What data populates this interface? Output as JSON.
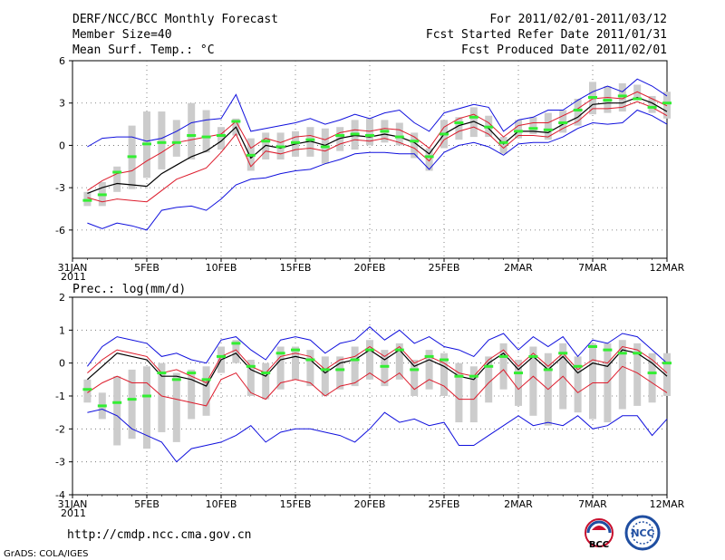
{
  "header": {
    "title": "DERF/NCC/BCC Monthly Forecast",
    "member_size": "Member Size=40",
    "variable": "Mean Surf. Temp.: °C",
    "period": "For 2011/02/01-2011/03/12",
    "started": "Fcst Started Refer Date 2011/01/31",
    "produced": "Fcst Produced Date 2011/02/01"
  },
  "footer": {
    "url": "http://cmdp.ncc.cma.gov.cn",
    "credit": "GrADS: COLA/IGES",
    "logo_bcc": "BCC",
    "logo_ncc": "NCC"
  },
  "colors": {
    "envelope": "#1010dd",
    "spread": "#dd1c2c",
    "mean": "#000000",
    "median": "#33ee33",
    "box": "#cccccc",
    "grid": "#666666"
  },
  "chart_data": [
    {
      "type": "line",
      "title": "Mean Surf. Temp.: °C",
      "ylim": [
        -8,
        6
      ],
      "yticks": [
        -6,
        -3,
        0,
        3,
        6
      ],
      "xticks": [
        {
          "day": 0,
          "label": "31JAN",
          "sub": "2011"
        },
        {
          "day": 5,
          "label": "5FEB"
        },
        {
          "day": 10,
          "label": "10FEB"
        },
        {
          "day": 15,
          "label": "15FEB"
        },
        {
          "day": 20,
          "label": "20FEB"
        },
        {
          "day": 25,
          "label": "25FEB"
        },
        {
          "day": 30,
          "label": "2MAR"
        },
        {
          "day": 35,
          "label": "7MAR"
        },
        {
          "day": 40,
          "label": "12MAR"
        }
      ],
      "days": [
        1,
        2,
        3,
        4,
        5,
        6,
        7,
        8,
        9,
        10,
        11,
        12,
        13,
        14,
        15,
        16,
        17,
        18,
        19,
        20,
        21,
        22,
        23,
        24,
        25,
        26,
        27,
        28,
        29,
        30,
        31,
        32,
        33,
        34,
        35,
        36,
        37,
        38,
        39,
        40
      ],
      "series": [
        {
          "name": "max",
          "values": [
            -0.1,
            0.5,
            0.6,
            0.6,
            0.3,
            0.5,
            1.0,
            1.6,
            1.8,
            1.9,
            3.6,
            1.0,
            1.2,
            1.4,
            1.6,
            1.9,
            1.5,
            1.8,
            2.2,
            1.9,
            2.3,
            2.5,
            1.6,
            1.0,
            2.3,
            2.6,
            2.9,
            2.7,
            1.0,
            1.8,
            2.0,
            2.5,
            2.5,
            3.2,
            3.8,
            4.2,
            3.8,
            4.7,
            4.2,
            3.5
          ]
        },
        {
          "name": "upper",
          "values": [
            -3.2,
            -2.5,
            -2.0,
            -1.8,
            -1.1,
            -0.5,
            0.2,
            0.4,
            0.6,
            0.8,
            1.7,
            -0.2,
            0.5,
            0.2,
            0.6,
            0.7,
            0.4,
            0.9,
            1.1,
            1.0,
            1.2,
            1.1,
            0.6,
            -0.2,
            1.3,
            1.9,
            2.2,
            1.6,
            0.6,
            1.4,
            1.6,
            1.6,
            2.1,
            2.6,
            3.3,
            3.4,
            3.3,
            3.8,
            3.3,
            2.8
          ]
        },
        {
          "name": "mean",
          "values": [
            -3.4,
            -3.0,
            -2.7,
            -2.8,
            -2.9,
            -2.0,
            -1.4,
            -0.8,
            -0.4,
            0.3,
            1.3,
            -0.9,
            0.0,
            -0.2,
            0.1,
            0.3,
            0.0,
            0.5,
            0.7,
            0.6,
            0.8,
            0.6,
            0.2,
            -0.6,
            0.8,
            1.4,
            1.7,
            1.2,
            0.1,
            1.0,
            1.0,
            0.9,
            1.5,
            2.0,
            2.9,
            3.0,
            3.0,
            3.4,
            3.0,
            2.4
          ]
        },
        {
          "name": "lower",
          "values": [
            -3.7,
            -4.0,
            -3.8,
            -3.9,
            -4.0,
            -3.2,
            -2.4,
            -2.0,
            -1.6,
            -0.5,
            0.8,
            -1.5,
            -0.4,
            -0.6,
            -0.3,
            -0.2,
            -0.4,
            0.1,
            0.4,
            0.3,
            0.5,
            0.2,
            -0.2,
            -1.1,
            0.4,
            1.0,
            1.3,
            0.8,
            -0.2,
            0.7,
            0.7,
            0.6,
            1.2,
            1.7,
            2.6,
            2.6,
            2.7,
            3.1,
            2.7,
            2.1
          ]
        },
        {
          "name": "min",
          "values": [
            -5.5,
            -5.9,
            -5.5,
            -5.7,
            -6.0,
            -4.6,
            -4.4,
            -4.3,
            -4.6,
            -3.8,
            -2.8,
            -2.4,
            -2.3,
            -2.0,
            -1.8,
            -1.7,
            -1.3,
            -1.0,
            -0.6,
            -0.5,
            -0.5,
            -0.6,
            -0.6,
            -1.7,
            -0.5,
            0.0,
            0.2,
            -0.1,
            -0.7,
            0.1,
            0.2,
            0.2,
            0.6,
            1.2,
            1.6,
            1.5,
            1.6,
            2.5,
            2.1,
            1.5
          ]
        },
        {
          "name": "median",
          "values": [
            -3.9,
            -3.5,
            -1.9,
            -0.8,
            0.1,
            0.2,
            0.2,
            0.7,
            0.6,
            0.7,
            1.7,
            -0.7,
            0.3,
            -0.1,
            0.2,
            0.4,
            -0.1,
            0.7,
            0.8,
            0.7,
            1.0,
            0.6,
            0.3,
            -0.8,
            0.8,
            1.6,
            2.0,
            1.3,
            0.2,
            1.0,
            1.2,
            1.1,
            1.6,
            2.5,
            3.4,
            3.2,
            3.5,
            3.3,
            2.7,
            3.0
          ]
        },
        {
          "name": "box_top",
          "values": [
            -3.3,
            -2.6,
            -1.5,
            1.4,
            2.4,
            2.4,
            1.8,
            3.0,
            2.5,
            1.3,
            1.9,
            0.5,
            0.9,
            0.9,
            1.0,
            1.3,
            1.2,
            1.3,
            1.8,
            1.9,
            1.8,
            1.6,
            0.9,
            -0.2,
            1.8,
            2.0,
            2.7,
            2.1,
            0.6,
            1.8,
            2.0,
            2.3,
            2.5,
            3.3,
            4.5,
            4.2,
            4.4,
            4.3,
            3.5,
            3.8
          ]
        },
        {
          "name": "box_bottom",
          "values": [
            -4.3,
            -4.3,
            -3.3,
            -3.1,
            -2.3,
            -1.7,
            -0.8,
            -1.0,
            -0.5,
            -0.3,
            0.7,
            -1.8,
            -1.0,
            -1.0,
            -0.8,
            -0.8,
            -1.3,
            -0.4,
            -0.3,
            0.0,
            0.2,
            0.0,
            -0.9,
            -1.8,
            -0.2,
            0.4,
            0.6,
            0.6,
            -0.6,
            0.5,
            0.8,
            0.4,
            0.9,
            1.4,
            2.2,
            2.3,
            2.4,
            3.2,
            2.3,
            1.9
          ]
        }
      ]
    },
    {
      "type": "line",
      "title": "Prec.: log(mm/d)",
      "ylim": [
        -4,
        2
      ],
      "yticks": [
        -4,
        -3,
        -2,
        -1,
        0,
        1,
        2
      ],
      "xticks": [
        {
          "day": 0,
          "label": "31JAN",
          "sub": "2011"
        },
        {
          "day": 5,
          "label": "5FEB"
        },
        {
          "day": 10,
          "label": "10FEB"
        },
        {
          "day": 15,
          "label": "15FEB"
        },
        {
          "day": 20,
          "label": "20FEB"
        },
        {
          "day": 25,
          "label": "25FEB"
        },
        {
          "day": 30,
          "label": "2MAR"
        },
        {
          "day": 35,
          "label": "7MAR"
        },
        {
          "day": 40,
          "label": "12MAR"
        }
      ],
      "days": [
        1,
        2,
        3,
        4,
        5,
        6,
        7,
        8,
        9,
        10,
        11,
        12,
        13,
        14,
        15,
        16,
        17,
        18,
        19,
        20,
        21,
        22,
        23,
        24,
        25,
        26,
        27,
        28,
        29,
        30,
        31,
        32,
        33,
        34,
        35,
        36,
        37,
        38,
        39,
        40
      ],
      "series": [
        {
          "name": "max",
          "values": [
            -0.1,
            0.5,
            0.8,
            0.7,
            0.6,
            0.2,
            0.3,
            0.1,
            0.0,
            0.7,
            0.8,
            0.4,
            0.1,
            0.7,
            0.8,
            0.7,
            0.3,
            0.6,
            0.7,
            1.1,
            0.7,
            1.0,
            0.6,
            0.8,
            0.5,
            0.4,
            0.2,
            0.7,
            0.9,
            0.4,
            0.8,
            0.5,
            0.8,
            0.2,
            0.7,
            0.6,
            0.9,
            0.8,
            0.4,
            0.0
          ]
        },
        {
          "name": "upper",
          "values": [
            -0.3,
            0.1,
            0.4,
            0.3,
            0.2,
            -0.3,
            -0.2,
            -0.4,
            -0.6,
            0.2,
            0.4,
            -0.1,
            -0.3,
            0.2,
            0.3,
            0.2,
            -0.2,
            0.1,
            0.2,
            0.5,
            0.2,
            0.5,
            0.0,
            0.2,
            0.0,
            -0.3,
            -0.4,
            0.1,
            0.4,
            -0.1,
            0.3,
            -0.1,
            0.3,
            -0.2,
            0.1,
            0.0,
            0.5,
            0.4,
            0.1,
            -0.3
          ]
        },
        {
          "name": "mean",
          "values": [
            -0.5,
            -0.1,
            0.3,
            0.2,
            0.1,
            -0.4,
            -0.4,
            -0.5,
            -0.7,
            0.1,
            0.3,
            -0.2,
            -0.4,
            0.1,
            0.2,
            0.1,
            -0.3,
            0.0,
            0.1,
            0.4,
            0.1,
            0.4,
            -0.1,
            0.1,
            -0.1,
            -0.4,
            -0.5,
            0.0,
            0.3,
            -0.2,
            0.2,
            -0.2,
            0.2,
            -0.3,
            0.0,
            -0.1,
            0.4,
            0.3,
            0.0,
            -0.4
          ]
        },
        {
          "name": "lower",
          "values": [
            -0.9,
            -0.6,
            -0.4,
            -0.6,
            -0.6,
            -1.0,
            -1.1,
            -1.2,
            -1.3,
            -0.5,
            -0.3,
            -0.9,
            -1.1,
            -0.6,
            -0.5,
            -0.6,
            -1.0,
            -0.7,
            -0.6,
            -0.3,
            -0.6,
            -0.3,
            -0.8,
            -0.5,
            -0.7,
            -1.1,
            -1.1,
            -0.6,
            -0.2,
            -0.8,
            -0.4,
            -0.8,
            -0.4,
            -0.9,
            -0.6,
            -0.6,
            -0.1,
            -0.3,
            -0.6,
            -0.9
          ]
        },
        {
          "name": "min",
          "values": [
            -1.5,
            -1.4,
            -1.6,
            -2.0,
            -2.2,
            -2.4,
            -3.0,
            -2.6,
            -2.5,
            -2.4,
            -2.2,
            -1.9,
            -2.4,
            -2.1,
            -2.0,
            -2.0,
            -2.1,
            -2.2,
            -2.4,
            -2.0,
            -1.5,
            -1.8,
            -1.7,
            -1.9,
            -1.8,
            -2.5,
            -2.5,
            -2.2,
            -1.9,
            -1.6,
            -1.9,
            -1.8,
            -1.9,
            -1.6,
            -2.0,
            -1.9,
            -1.6,
            -1.6,
            -2.2,
            -1.7
          ]
        },
        {
          "name": "median",
          "values": [
            -0.8,
            -1.3,
            -1.2,
            -1.1,
            -1.0,
            -0.3,
            -0.5,
            -0.3,
            -0.5,
            0.2,
            0.6,
            -0.1,
            -0.3,
            0.3,
            0.4,
            0.1,
            -0.2,
            -0.2,
            0.1,
            0.4,
            -0.1,
            0.4,
            -0.2,
            0.2,
            0.1,
            -0.4,
            -0.4,
            -0.1,
            0.2,
            -0.3,
            0.2,
            -0.2,
            0.3,
            -0.1,
            0.5,
            0.4,
            0.3,
            0.3,
            -0.3,
            0.0
          ]
        },
        {
          "name": "box_top",
          "values": [
            -0.5,
            -0.9,
            -0.4,
            -0.2,
            -0.1,
            0.0,
            -0.3,
            -0.2,
            -0.1,
            0.5,
            0.7,
            0.1,
            0.0,
            0.5,
            0.5,
            0.4,
            0.2,
            0.2,
            0.5,
            0.7,
            0.4,
            0.6,
            0.1,
            0.4,
            0.3,
            0.0,
            -0.1,
            0.2,
            0.6,
            0.1,
            0.5,
            0.3,
            0.6,
            0.2,
            0.6,
            0.6,
            0.7,
            0.6,
            0.3,
            0.3
          ]
        },
        {
          "name": "box_bottom",
          "values": [
            -1.2,
            -1.7,
            -2.5,
            -2.3,
            -2.6,
            -2.1,
            -2.4,
            -1.7,
            -1.6,
            -0.3,
            0.0,
            -1.0,
            -1.1,
            -0.8,
            -0.5,
            -0.7,
            -1.0,
            -0.8,
            -0.7,
            -0.5,
            -0.7,
            -0.5,
            -1.0,
            -0.8,
            -1.0,
            -1.8,
            -1.8,
            -1.2,
            -0.8,
            -1.3,
            -1.6,
            -1.9,
            -1.4,
            -1.5,
            -1.7,
            -1.8,
            -1.4,
            -1.3,
            -1.2,
            -1.0
          ]
        }
      ]
    }
  ]
}
